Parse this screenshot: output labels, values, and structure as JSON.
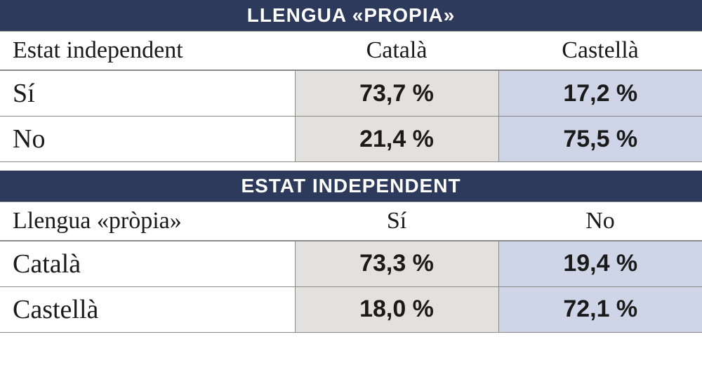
{
  "colors": {
    "header_bg": "#2e3a5c",
    "header_text": "#ffffff",
    "border": "#8a8a8a",
    "col_a_bg": "#e2e1df",
    "col_b_bg": "#ced5e6"
  },
  "table1": {
    "title": "LLENGUA «PROPIA»",
    "rowHeader": "Estat independent",
    "col1": "Català",
    "col2": "Castellà",
    "rows": [
      {
        "label": "Sí",
        "v1": "73,7 %",
        "v2": "17,2 %"
      },
      {
        "label": "No",
        "v1": "21,4 %",
        "v2": "75,5 %"
      }
    ]
  },
  "table2": {
    "title": "ESTAT INDEPENDENT",
    "rowHeader": "Llengua «pròpia»",
    "col1": "Sí",
    "col2": "No",
    "rows": [
      {
        "label": "Català",
        "v1": "73,3 %",
        "v2": "19,4 %"
      },
      {
        "label": "Castellà",
        "v1": "18,0 %",
        "v2": "72,1 %"
      }
    ]
  },
  "layout": {
    "col_left_pct": 42,
    "col_mid_pct": 29,
    "col_right_pct": 29
  }
}
